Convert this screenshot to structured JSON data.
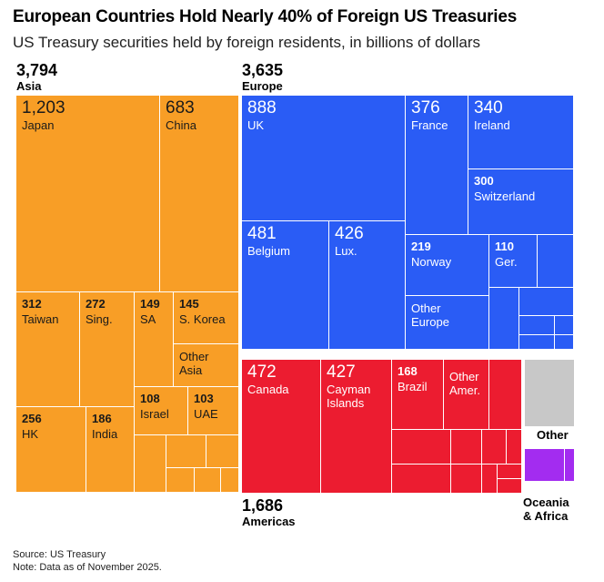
{
  "title": "European Countries Hold Nearly 40% of Foreign US Treasuries",
  "subtitle": "US Treasury securities held by foreign residents, in billions of dollars",
  "chart_data": {
    "type": "treemap",
    "title": "European Countries Hold Nearly 40% of Foreign US Treasuries",
    "subtitle": "US Treasury securities held by foreign residents, in billions of dollars",
    "units": "billions of dollars",
    "groups": [
      {
        "name": "Asia",
        "total_label": "3,794",
        "total": 3794,
        "color": "#f89e26",
        "items": [
          {
            "name": "Japan",
            "value": 1203,
            "value_label": "1,203"
          },
          {
            "name": "China",
            "value": 683,
            "value_label": "683"
          },
          {
            "name": "Taiwan",
            "value": 312,
            "value_label": "312"
          },
          {
            "name": "Sing.",
            "value": 272,
            "value_label": "272"
          },
          {
            "name": "SA",
            "value": 149,
            "value_label": "149"
          },
          {
            "name": "S. Korea",
            "value": 145,
            "value_label": "145"
          },
          {
            "name": "Other Asia",
            "value": null,
            "value_label": ""
          },
          {
            "name": "HK",
            "value": 256,
            "value_label": "256"
          },
          {
            "name": "India",
            "value": 186,
            "value_label": "186"
          },
          {
            "name": "Israel",
            "value": 108,
            "value_label": "108"
          },
          {
            "name": "UAE",
            "value": 103,
            "value_label": "103"
          }
        ]
      },
      {
        "name": "Europe",
        "total_label": "3,635",
        "total": 3635,
        "color": "#2a5cf5",
        "items": [
          {
            "name": "UK",
            "value": 888,
            "value_label": "888"
          },
          {
            "name": "France",
            "value": 376,
            "value_label": "376"
          },
          {
            "name": "Ireland",
            "value": 340,
            "value_label": "340"
          },
          {
            "name": "Switzerland",
            "value": 300,
            "value_label": "300"
          },
          {
            "name": "Belgium",
            "value": 481,
            "value_label": "481"
          },
          {
            "name": "Lux.",
            "value": 426,
            "value_label": "426"
          },
          {
            "name": "Norway",
            "value": 219,
            "value_label": "219"
          },
          {
            "name": "Ger.",
            "value": 110,
            "value_label": "110"
          },
          {
            "name": "Other Europe",
            "value": null,
            "value_label": ""
          }
        ]
      },
      {
        "name": "Americas",
        "total_label": "1,686",
        "total": 1686,
        "color": "#ec1c30",
        "items": [
          {
            "name": "Canada",
            "value": 472,
            "value_label": "472"
          },
          {
            "name": "Cayman Islands",
            "value": 427,
            "value_label": "427"
          },
          {
            "name": "Brazil",
            "value": 168,
            "value_label": "168"
          },
          {
            "name": "Other Amer.",
            "value": null,
            "value_label": ""
          }
        ]
      },
      {
        "name": "Other",
        "total_label": "",
        "color": "#c8c8c8",
        "items": []
      },
      {
        "name": "Oceania & Africa",
        "total_label": "",
        "color": "#a32cf0",
        "items": []
      }
    ]
  },
  "labels": {
    "asia_total": "3,794",
    "asia_name": "Asia",
    "europe_total": "3,635",
    "europe_name": "Europe",
    "americas_total": "1,686",
    "americas_name": "Americas",
    "other_name": "Other",
    "oceania_name_line1": "Oceania",
    "oceania_name_line2": "& Africa"
  },
  "tiles": {
    "japan": {
      "v": "1,203",
      "n": "Japan"
    },
    "china": {
      "v": "683",
      "n": "China"
    },
    "taiwan": {
      "v": "312",
      "n": "Taiwan"
    },
    "sing": {
      "v": "272",
      "n": "Sing."
    },
    "sa": {
      "v": "149",
      "n": "SA"
    },
    "skorea": {
      "v": "145",
      "n": "S. Korea"
    },
    "otherasia": {
      "n": "Other Asia"
    },
    "hk": {
      "v": "256",
      "n": "HK"
    },
    "india": {
      "v": "186",
      "n": "India"
    },
    "israel": {
      "v": "108",
      "n": "Israel"
    },
    "uae": {
      "v": "103",
      "n": "UAE"
    },
    "uk": {
      "v": "888",
      "n": "UK"
    },
    "france": {
      "v": "376",
      "n": "France"
    },
    "ireland": {
      "v": "340",
      "n": "Ireland"
    },
    "switzerland": {
      "v": "300",
      "n": "Switzerland"
    },
    "belgium": {
      "v": "481",
      "n": "Belgium"
    },
    "lux": {
      "v": "426",
      "n": "Lux."
    },
    "norway": {
      "v": "219",
      "n": "Norway"
    },
    "ger": {
      "v": "110",
      "n": "Ger."
    },
    "othereurope": {
      "n": "Other Europe"
    },
    "canada": {
      "v": "472",
      "n": "Canada"
    },
    "cayman": {
      "v": "427",
      "n": "Cayman Islands"
    },
    "brazil": {
      "v": "168",
      "n": "Brazil"
    },
    "otheramer": {
      "n": "Other Amer."
    }
  },
  "footer": {
    "source": "Source: US Treasury",
    "note": "Note: Data as of November 2025."
  }
}
